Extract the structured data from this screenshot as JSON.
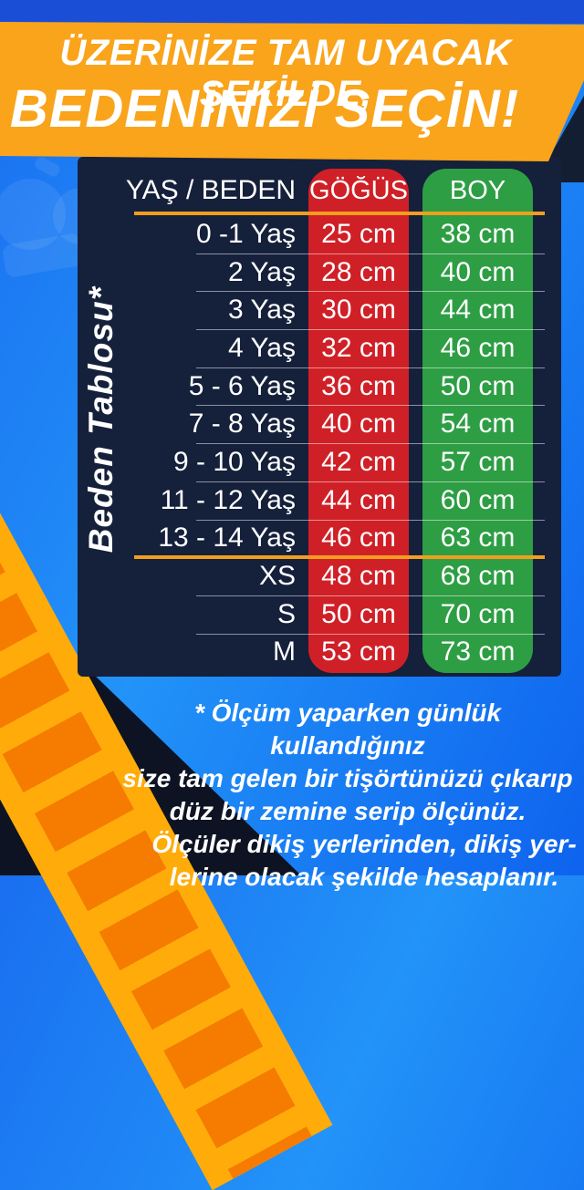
{
  "banner": {
    "line1": "ÜZERİNİZE TAM UYACAK ŞEKİLDE,",
    "line2": "BEDENİNİZİ SEÇİN!"
  },
  "side_label": "Beden Tablosu*",
  "chart_data": {
    "type": "table",
    "title": "Beden Tablosu (size chart)",
    "columns": [
      "YAŞ / BEDEN",
      "GÖĞÜS",
      "BOY"
    ],
    "rows": [
      [
        "0 -1 Yaş",
        "25 cm",
        "38 cm"
      ],
      [
        "2 Yaş",
        "28 cm",
        "40 cm"
      ],
      [
        "3 Yaş",
        "30 cm",
        "44 cm"
      ],
      [
        "4 Yaş",
        "32 cm",
        "46 cm"
      ],
      [
        "5 - 6 Yaş",
        "36 cm",
        "50 cm"
      ],
      [
        "7 - 8 Yaş",
        "40 cm",
        "54 cm"
      ],
      [
        "9 - 10 Yaş",
        "42 cm",
        "57 cm"
      ],
      [
        "11 - 12 Yaş",
        "44 cm",
        "60 cm"
      ],
      [
        "13 - 14 Yaş",
        "46 cm",
        "63 cm"
      ],
      [
        "XS",
        "48 cm",
        "68 cm"
      ],
      [
        "S",
        "50 cm",
        "70 cm"
      ],
      [
        "M",
        "53 cm",
        "73 cm"
      ]
    ],
    "group_break_index": 9,
    "layout": {
      "chest_column_color": "#D02027",
      "height_column_color": "#2E9E44",
      "grid": "thin white row separators, orange section dividers"
    }
  },
  "note": {
    "lines": [
      "* Ölçüm yaparken günlük kullandığınız",
      "size tam gelen bir tişörtünüzü çıkarıp",
      "düz bir zemine serip ölçünüz.",
      "Ölçüler dikiş yerlerinden, dikiş yer-",
      "lerine olacak şekilde hesaplanır."
    ]
  },
  "colors": {
    "background_blue_top": "#1B4ED6",
    "banner_orange": "#F9A41B",
    "panel_navy": "#15203B",
    "chest_red": "#D02027",
    "height_green": "#2E9E44",
    "accent_line_orange": "#F19E20",
    "hazard_yellow": "#FFAC0A",
    "hazard_dash_orange": "#F57C00",
    "corner_navy": "#0D1322",
    "text_white": "#FFFFFF"
  }
}
